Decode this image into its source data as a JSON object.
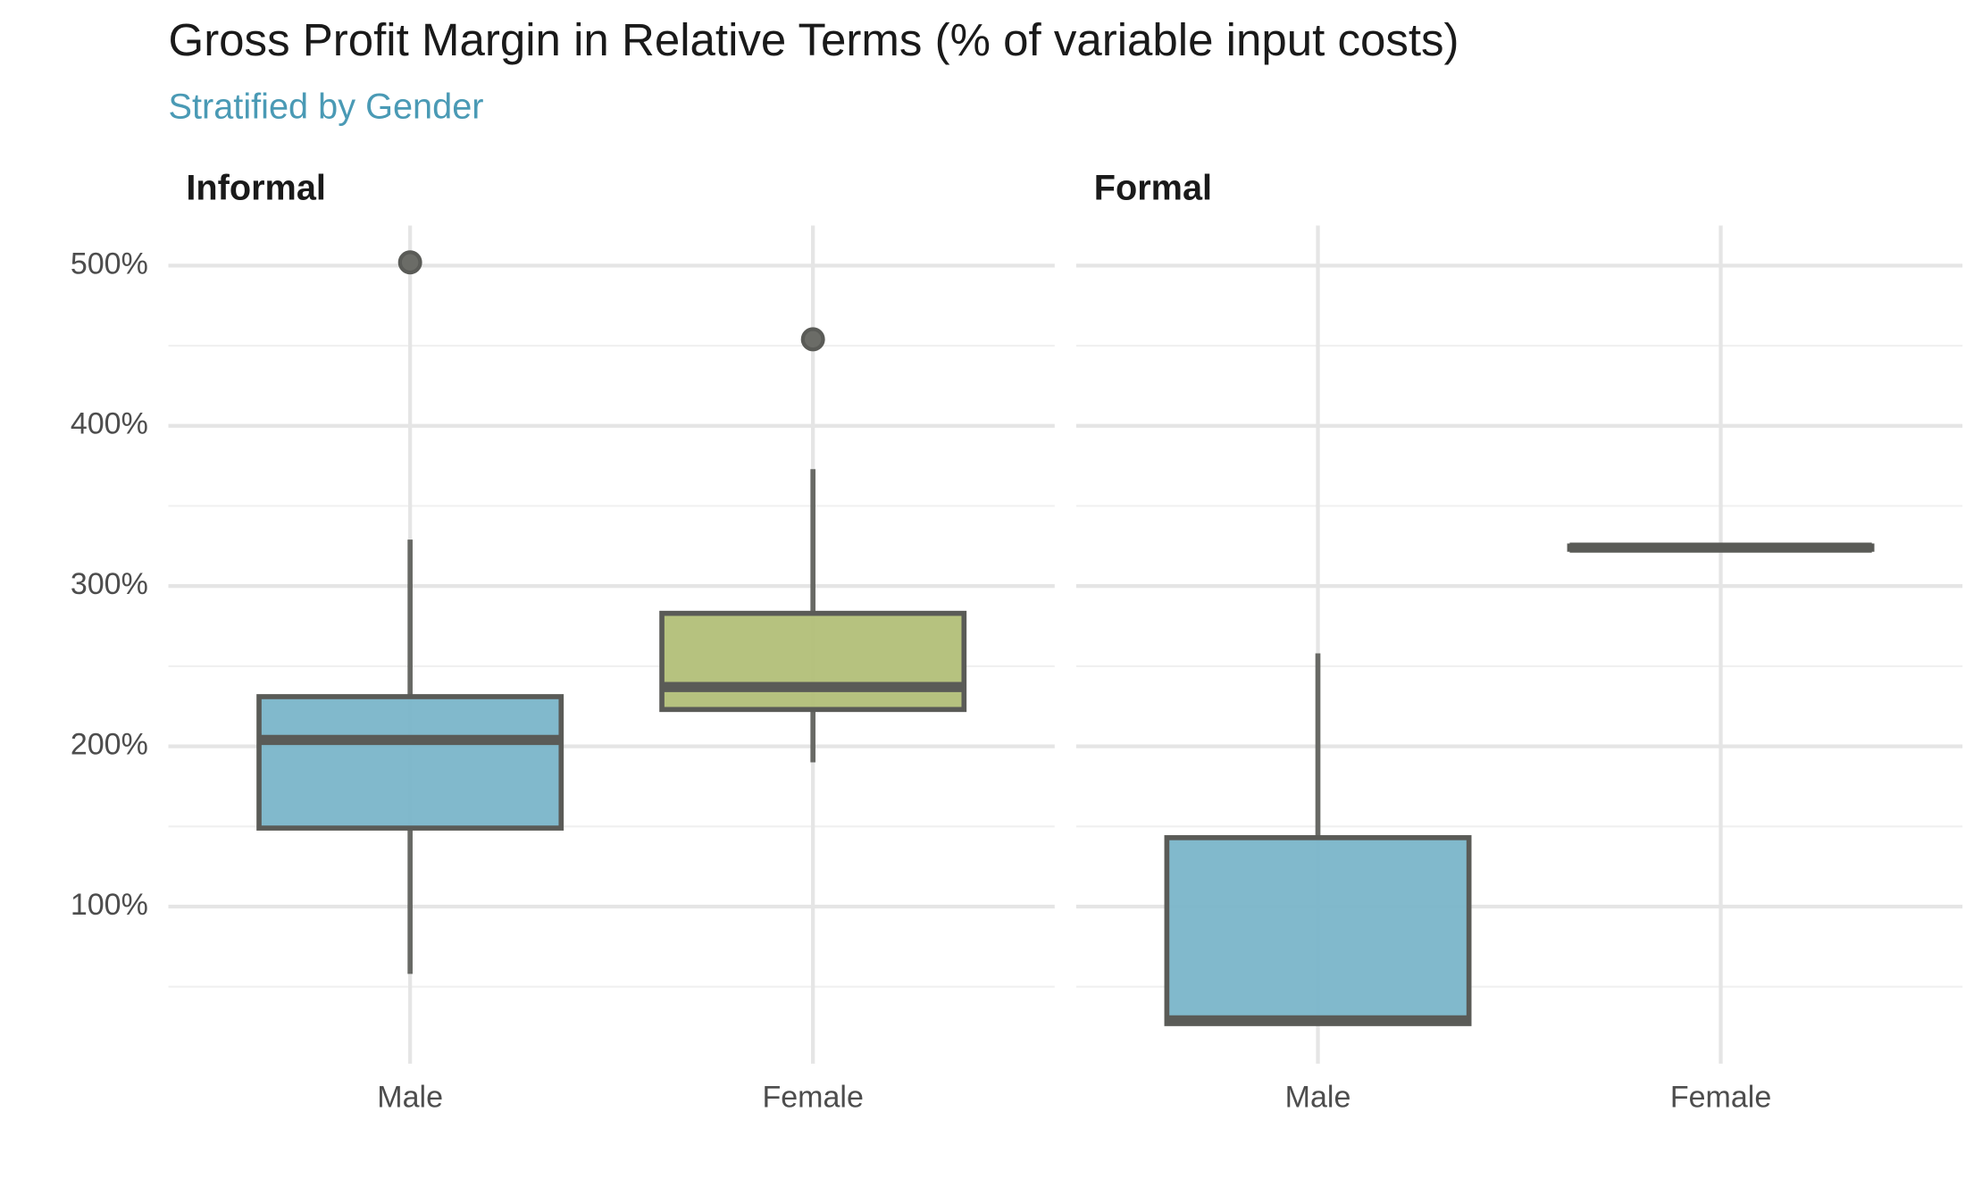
{
  "title": "Gross Profit Margin in Relative Terms (% of variable input costs)",
  "subtitle": "Stratified by Gender",
  "chart_data": [
    {
      "type": "box",
      "title": "Informal",
      "categories": [
        "Male",
        "Female"
      ],
      "colors": [
        "#7ab5c9",
        "#b2bf78"
      ],
      "whisker_low": [
        58,
        190
      ],
      "q1": [
        149,
        223
      ],
      "median": [
        204,
        237
      ],
      "q3": [
        231,
        283
      ],
      "whisker_high": [
        329,
        373
      ],
      "outliers": [
        [
          502
        ],
        [
          454
        ]
      ],
      "ylim": [
        2,
        525
      ],
      "yticks": [
        {
          "value": 100,
          "label": "100%"
        },
        {
          "value": 200,
          "label": "200%"
        },
        {
          "value": 300,
          "label": "300%"
        },
        {
          "value": 400,
          "label": "400%"
        },
        {
          "value": 500,
          "label": "500%"
        }
      ],
      "minor_yticks": [
        50,
        150,
        250,
        350,
        450
      ],
      "grid": true
    },
    {
      "type": "box",
      "title": "Formal",
      "categories": [
        "Male",
        "Female"
      ],
      "colors": [
        "#7ab5c9",
        "#b2bf78"
      ],
      "whisker_low": [
        27,
        324
      ],
      "q1": [
        27,
        323
      ],
      "median": [
        29,
        324
      ],
      "q3": [
        143,
        325
      ],
      "whisker_high": [
        258,
        325
      ],
      "outliers": [
        [],
        []
      ],
      "ylim": [
        2,
        525
      ],
      "yticks": [
        100,
        200,
        300,
        400,
        500
      ],
      "minor_yticks": [
        50,
        150,
        250,
        350,
        450
      ],
      "grid": true
    }
  ]
}
